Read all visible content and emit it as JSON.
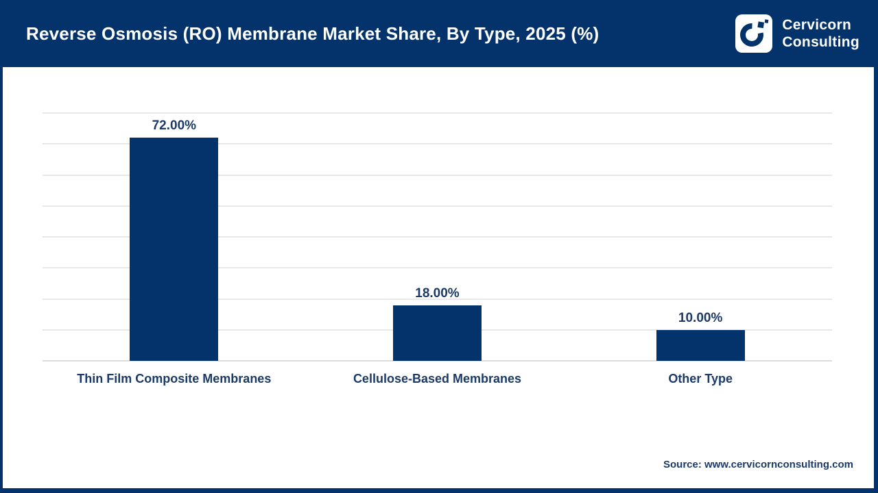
{
  "header": {
    "title": "Reverse Osmosis (RO) Membrane Market Share, By Type, 2025 (%)",
    "logo": {
      "line1": "Cervicorn",
      "line2": "Consulting"
    }
  },
  "chart_data": {
    "type": "bar",
    "title": "Reverse Osmosis (RO) Membrane Market Share, By Type, 2025 (%)",
    "categories": [
      "Thin Film Composite Membranes",
      "Cellulose-Based Membranes",
      "Other Type"
    ],
    "values": [
      72,
      18,
      10
    ],
    "value_labels": [
      "72.00%",
      "18.00%",
      "10.00%"
    ],
    "xlabel": "",
    "ylabel": "",
    "ylim": [
      0,
      80
    ],
    "gridline_step": 10,
    "grid": true,
    "legend": false,
    "bar_color": "#04336b",
    "label_color": "#1b3a68"
  },
  "footer": {
    "source": "Source: www.cervicornconsulting.com"
  },
  "colors": {
    "navy": "#04336b",
    "bar": "#04336b",
    "label": "#1b3a68",
    "gridline": "#e8e8e8",
    "background": "#ffffff"
  }
}
